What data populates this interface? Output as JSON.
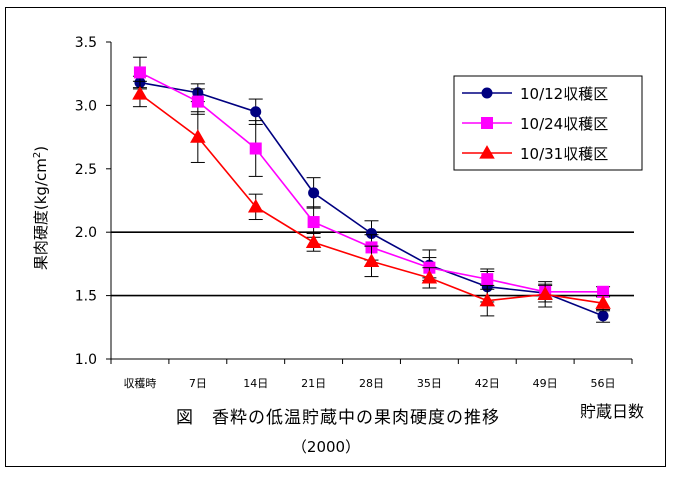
{
  "chart_data": {
    "type": "line",
    "title": "図　香粋の低温貯蔵中の果肉硬度の推移",
    "subtitle": "（2000）",
    "xlabel": "貯蔵日数",
    "ylabel": "果肉硬度(kg/cm2)",
    "ylabel_parts": {
      "main": "果肉硬度(kg/cm",
      "sup": "2",
      "end": ")"
    },
    "categories": [
      "収穫時",
      "7日",
      "14日",
      "21日",
      "28日",
      "35日",
      "42日",
      "49日",
      "56日"
    ],
    "yticks": [
      "1.0",
      "1.5",
      "2.0",
      "2.5",
      "3.0",
      "3.5"
    ],
    "ylim": [
      1.0,
      3.5
    ],
    "reference_lines": [
      1.5,
      2.0
    ],
    "legend_position": "top-right",
    "series": [
      {
        "name": "10/12収穫区",
        "color": "#000080",
        "marker": "circle",
        "values": [
          3.18,
          3.1,
          2.95,
          2.31,
          1.99,
          1.74,
          1.57,
          1.52,
          1.34
        ],
        "errors": [
          0.05,
          0.07,
          0.1,
          0.12,
          0.1,
          0.12,
          0.12,
          0.07,
          0.05
        ]
      },
      {
        "name": "10/24収穫区",
        "color": "#ff00ff",
        "marker": "square",
        "values": [
          3.26,
          3.03,
          2.66,
          2.08,
          1.88,
          1.72,
          1.63,
          1.53,
          1.53
        ],
        "errors": [
          0.12,
          0.1,
          0.22,
          0.12,
          0.1,
          0.08,
          0.08,
          0.05,
          0.04
        ]
      },
      {
        "name": "10/31収穫区",
        "color": "#ff0000",
        "marker": "triangle",
        "values": [
          3.09,
          2.75,
          2.2,
          1.92,
          1.77,
          1.64,
          1.46,
          1.51,
          1.44
        ],
        "errors": [
          0.1,
          0.2,
          0.1,
          0.07,
          0.12,
          0.08,
          0.12,
          0.1,
          0.06
        ]
      }
    ]
  }
}
